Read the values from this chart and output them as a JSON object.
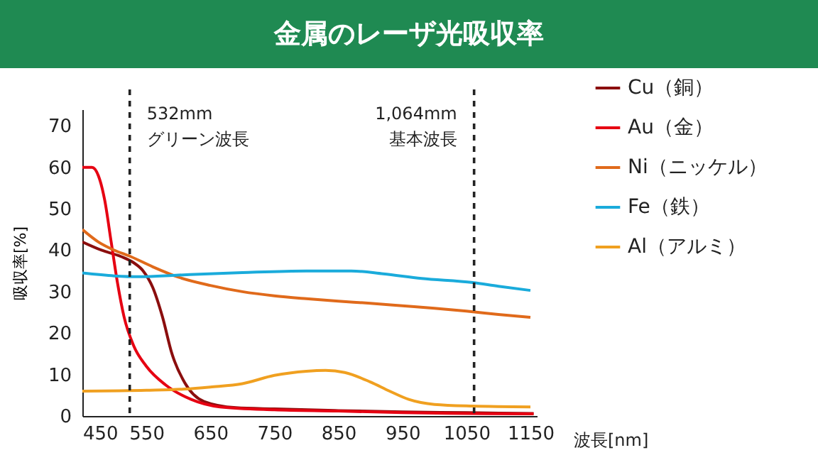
{
  "chart_data": {
    "type": "line",
    "title": "金属のレーザ光吸収率",
    "xlabel": "波長[nm]",
    "ylabel": "吸収率[%]",
    "xlim": [
      450,
      1160
    ],
    "xticks": [
      450,
      550,
      650,
      750,
      850,
      950,
      1050,
      1150
    ],
    "ylim": [
      0,
      74
    ],
    "yticks": [
      0,
      10,
      20,
      30,
      40,
      50,
      60,
      70
    ],
    "grid": false,
    "legend": "right",
    "series": [
      {
        "name": "Cu（銅）",
        "color": "#8b0e0e",
        "x": [
          450,
          480,
          510,
          530,
          545,
          560,
          575,
          590,
          610,
          640,
          690,
          750,
          850,
          950,
          1050,
          1155
        ],
        "values": [
          42,
          40,
          38.5,
          37,
          35,
          31,
          24,
          15,
          8,
          3.5,
          2,
          1.7,
          1.3,
          1,
          0.8,
          0.6
        ]
      },
      {
        "name": "Au（金）",
        "color": "#e60012",
        "x": [
          450,
          465,
          475,
          485,
          495,
          505,
          515,
          530,
          550,
          580,
          620,
          665,
          750,
          850,
          950,
          1050,
          1155
        ],
        "values": [
          60,
          60,
          58,
          52,
          42,
          32,
          24,
          17,
          12,
          7.5,
          4,
          2.2,
          1.5,
          1.2,
          0.8,
          0.6,
          0.5
        ]
      },
      {
        "name": "Ni（ニッケル）",
        "color": "#e06a1b",
        "x": [
          450,
          475,
          500,
          525,
          560,
          600,
          650,
          700,
          750,
          800,
          850,
          900,
          950,
          1000,
          1050,
          1100,
          1150
        ],
        "values": [
          45,
          42,
          40,
          38.5,
          36,
          33.5,
          31.5,
          30,
          29,
          28.3,
          27.7,
          27.2,
          26.6,
          26,
          25.3,
          24.5,
          23.8
        ]
      },
      {
        "name": "Fe（鉄）",
        "color": "#1aabdb",
        "x": [
          450,
          500,
          540,
          600,
          700,
          800,
          870,
          920,
          980,
          1060,
          1100,
          1150
        ],
        "values": [
          34.5,
          33.8,
          33.6,
          34,
          34.6,
          35,
          35,
          34.3,
          33.2,
          32.2,
          31.3,
          30.3
        ]
      },
      {
        "name": "Al（アルミ）",
        "color": "#f0a020",
        "x": [
          450,
          550,
          610,
          650,
          700,
          750,
          800,
          830,
          860,
          900,
          930,
          960,
          1000,
          1060,
          1150
        ],
        "values": [
          6,
          6.2,
          6.5,
          7,
          7.8,
          9.8,
          10.8,
          11,
          10.5,
          8.2,
          6,
          4,
          2.8,
          2.4,
          2.2
        ]
      }
    ],
    "ref_lines": [
      {
        "axis": "x",
        "value": 524,
        "label": "532mm\nグリーン波長",
        "line_style": "dashed",
        "color": "#222222"
      },
      {
        "axis": "x",
        "value": 1062,
        "label": "1,064mm\n基本波長",
        "line_style": "dashed",
        "color": "#222222"
      }
    ]
  }
}
